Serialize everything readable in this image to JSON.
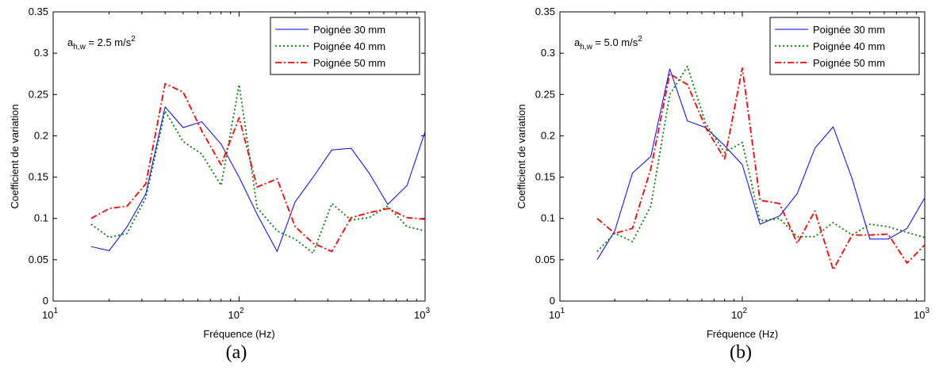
{
  "chart_data": [
    {
      "type": "line",
      "caption": "(a)",
      "annotation": {
        "main": "a",
        "sub": "h,w",
        "value": " = 2.5 m/s",
        "sup": "2"
      },
      "xlabel": "Fréquence (Hz)",
      "ylabel": "Coefficient de variation",
      "xscale": "log",
      "xlim": [
        10,
        1000
      ],
      "ylim": [
        0,
        0.35
      ],
      "yticks": [
        "0",
        "0.05",
        "0.1",
        "0.15",
        "0.2",
        "0.25",
        "0.3",
        "0.35"
      ],
      "xticks": [
        {
          "base": "10",
          "exp": "1"
        },
        {
          "base": "10",
          "exp": "2"
        },
        {
          "base": "10",
          "exp": "3"
        }
      ],
      "legend": "top-right",
      "x": [
        16,
        20,
        25,
        31.5,
        40,
        50,
        63,
        80,
        100,
        125,
        160,
        200,
        250,
        315,
        400,
        500,
        630,
        800,
        1000
      ],
      "series": [
        {
          "name": "Poignée 30 mm",
          "color": "#0000ff",
          "dash": "solid",
          "values": [
            0.066,
            0.061,
            0.09,
            0.13,
            0.235,
            0.21,
            0.217,
            0.19,
            0.15,
            0.105,
            0.06,
            0.12,
            0.15,
            0.183,
            0.185,
            0.155,
            0.117,
            0.14,
            0.205
          ]
        },
        {
          "name": "Poignée 40 mm",
          "color": "#008000",
          "dash": "dotted",
          "values": [
            0.093,
            0.077,
            0.082,
            0.125,
            0.23,
            0.193,
            0.178,
            0.14,
            0.262,
            0.113,
            0.085,
            0.075,
            0.058,
            0.118,
            0.098,
            0.101,
            0.115,
            0.09,
            0.085
          ]
        },
        {
          "name": "Poignée 50 mm",
          "color": "#ff0000",
          "dash": "dashdot",
          "values": [
            0.1,
            0.112,
            0.115,
            0.142,
            0.263,
            0.253,
            0.206,
            0.165,
            0.222,
            0.138,
            0.148,
            0.09,
            0.07,
            0.06,
            0.101,
            0.107,
            0.112,
            0.101,
            0.099
          ]
        }
      ]
    },
    {
      "type": "line",
      "caption": "(b)",
      "annotation": {
        "main": "a",
        "sub": "h,w",
        "value": " = 5.0 m/s",
        "sup": "2"
      },
      "xlabel": "Fréquence (Hz)",
      "ylabel": "Coefficient de variation",
      "xscale": "log",
      "xlim": [
        10,
        1000
      ],
      "ylim": [
        0,
        0.35
      ],
      "yticks": [
        "0",
        "0.05",
        "0.1",
        "0.15",
        "0.2",
        "0.25",
        "0.3",
        "0.35"
      ],
      "xticks": [
        {
          "base": "10",
          "exp": "1"
        },
        {
          "base": "10",
          "exp": "2"
        },
        {
          "base": "10",
          "exp": "3"
        }
      ],
      "legend": "top-right",
      "x": [
        16,
        20,
        25,
        31.5,
        40,
        50,
        63,
        80,
        100,
        125,
        160,
        200,
        250,
        315,
        400,
        500,
        630,
        800,
        1000
      ],
      "series": [
        {
          "name": "Poignée 30 mm",
          "color": "#0000ff",
          "dash": "solid",
          "values": [
            0.05,
            0.085,
            0.155,
            0.175,
            0.281,
            0.218,
            0.21,
            0.188,
            0.165,
            0.093,
            0.103,
            0.13,
            0.185,
            0.211,
            0.148,
            0.075,
            0.075,
            0.088,
            0.125
          ]
        },
        {
          "name": "Poignée 40 mm",
          "color": "#008000",
          "dash": "dotted",
          "values": [
            0.06,
            0.082,
            0.072,
            0.115,
            0.25,
            0.284,
            0.215,
            0.18,
            0.192,
            0.097,
            0.1,
            0.078,
            0.078,
            0.095,
            0.08,
            0.093,
            0.09,
            0.083,
            0.077
          ]
        },
        {
          "name": "Poignée 50 mm",
          "color": "#ff0000",
          "dash": "dashdot",
          "values": [
            0.1,
            0.082,
            0.088,
            0.16,
            0.275,
            0.262,
            0.21,
            0.172,
            0.282,
            0.122,
            0.118,
            0.07,
            0.109,
            0.038,
            0.08,
            0.08,
            0.081,
            0.046,
            0.068
          ]
        }
      ]
    }
  ]
}
